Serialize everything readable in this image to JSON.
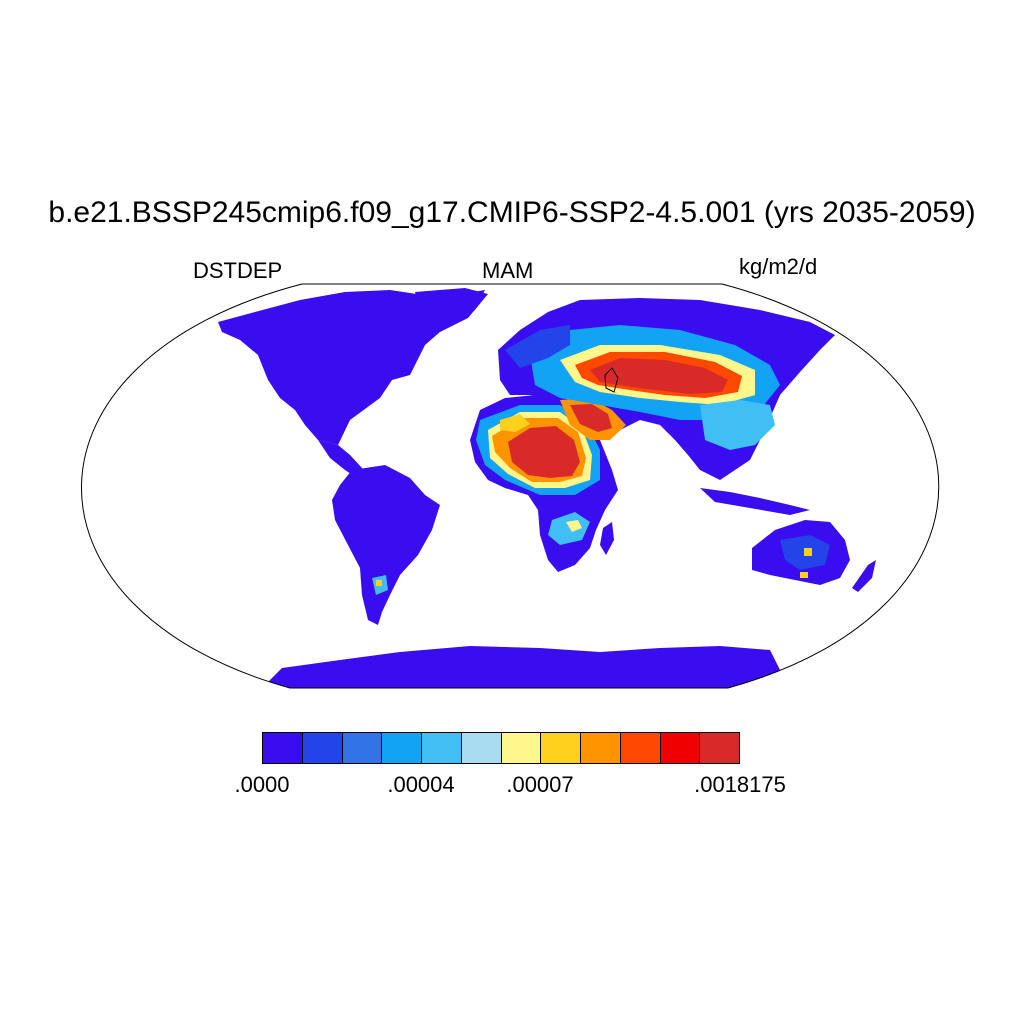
{
  "title": "b.e21.BSSP245cmip6.f09_g17.CMIP6-SSP2-4.5.001 (yrs 2035-2059)",
  "left_label": "DSTDEP",
  "center_label": "MAM",
  "right_label": "kg/m2/d",
  "colorbar": {
    "colors": [
      "#3a0cf0",
      "#2244e8",
      "#3373e8",
      "#13a3f5",
      "#40bff5",
      "#a9dcf0",
      "#fff68c",
      "#ffd11f",
      "#ff9400",
      "#ff4800",
      "#f00000",
      "#d92a2a"
    ],
    "labels": [
      ".0000",
      ".00004",
      ".00007",
      ".0018175"
    ]
  },
  "map": {
    "ocean_color": "#ffffff",
    "land_base_color": "#3a0cf0"
  }
}
